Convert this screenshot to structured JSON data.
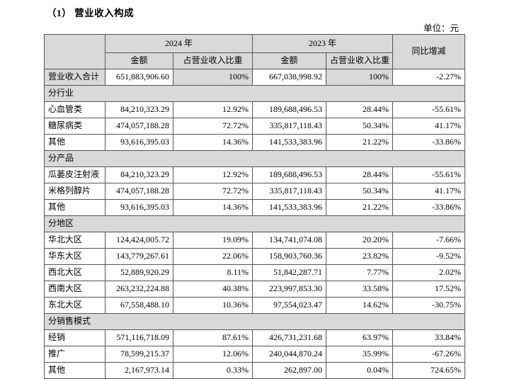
{
  "page": {
    "title": "（1） 营业收入构成",
    "unit_label": "单位：元"
  },
  "table": {
    "header": {
      "year_2024": "2024 年",
      "year_2023": "2023 年",
      "yoy": "同比增减",
      "amount_2024": "金额",
      "ratio_2024": "占营业收入比重",
      "amount_2023": "金额",
      "ratio_2023": "占营业收入比重"
    },
    "rows": [
      {
        "type": "total",
        "label": "营业收入合计",
        "a24": "651,883,906.60",
        "r24": "100%",
        "a23": "667,038,998.92",
        "r23": "100%",
        "yoy": "-2.27%"
      },
      {
        "type": "section",
        "label": "分行业"
      },
      {
        "type": "data",
        "label": "心血管类",
        "a24": "84,210,323.29",
        "r24": "12.92%",
        "a23": "189,688,496.53",
        "r23": "28.44%",
        "yoy": "-55.61%"
      },
      {
        "type": "data",
        "label": "糖尿病类",
        "a24": "474,057,188.28",
        "r24": "72.72%",
        "a23": "335,817,118.43",
        "r23": "50.34%",
        "yoy": "41.17%"
      },
      {
        "type": "data",
        "label": "其他",
        "a24": "93,616,395.03",
        "r24": "14.36%",
        "a23": "141,533,383.96",
        "r23": "21.22%",
        "yoy": "-33.86%"
      },
      {
        "type": "section",
        "label": "分产品"
      },
      {
        "type": "data",
        "label": "瓜蒌皮注射液",
        "a24": "84,210,323.29",
        "r24": "12.92%",
        "a23": "189,688,496.53",
        "r23": "28.44%",
        "yoy": "-55.61%"
      },
      {
        "type": "data",
        "label": "米格列醇片",
        "a24": "474,057,188.28",
        "r24": "72.72%",
        "a23": "335,817,118.43",
        "r23": "50.34%",
        "yoy": "41.17%"
      },
      {
        "type": "data",
        "label": "其他",
        "a24": "93,616,395.03",
        "r24": "14.36%",
        "a23": "141,533,383.96",
        "r23": "21.22%",
        "yoy": "-33.86%"
      },
      {
        "type": "section",
        "label": "分地区"
      },
      {
        "type": "data",
        "label": "华北大区",
        "a24": "124,424,005.72",
        "r24": "19.09%",
        "a23": "134,741,074.08",
        "r23": "20.20%",
        "yoy": "-7.66%"
      },
      {
        "type": "data",
        "label": "华东大区",
        "a24": "143,779,267.61",
        "r24": "22.06%",
        "a23": "158,903,760.36",
        "r23": "23.82%",
        "yoy": "-9.52%"
      },
      {
        "type": "data",
        "label": "西北大区",
        "a24": "52,889,920.29",
        "r24": "8.11%",
        "a23": "51,842,287.71",
        "r23": "7.77%",
        "yoy": "2.02%"
      },
      {
        "type": "data",
        "label": "西南大区",
        "a24": "263,232,224.88",
        "r24": "40.38%",
        "a23": "223,997,853.30",
        "r23": "33.58%",
        "yoy": "17.52%"
      },
      {
        "type": "data",
        "label": "东北大区",
        "a24": "67,558,488.10",
        "r24": "10.36%",
        "a23": "97,554,023.47",
        "r23": "14.62%",
        "yoy": "-30.75%"
      },
      {
        "type": "section",
        "label": "分销售模式"
      },
      {
        "type": "data",
        "label": "经销",
        "a24": "571,116,718.09",
        "r24": "87.61%",
        "a23": "426,731,231.68",
        "r23": "63.97%",
        "yoy": "33.84%"
      },
      {
        "type": "data",
        "label": "推广",
        "a24": "78,599,215.37",
        "r24": "12.06%",
        "a23": "240,044,870.24",
        "r23": "35.99%",
        "yoy": "-67.26%"
      },
      {
        "type": "data",
        "label": "其他",
        "a24": "2,167,973.14",
        "r24": "0.33%",
        "a23": "262,897.00",
        "r23": "0.04%",
        "yoy": "724.65%"
      }
    ],
    "colors": {
      "shaded_cell_bg": "#d9d9d9",
      "border": "#555555"
    }
  }
}
